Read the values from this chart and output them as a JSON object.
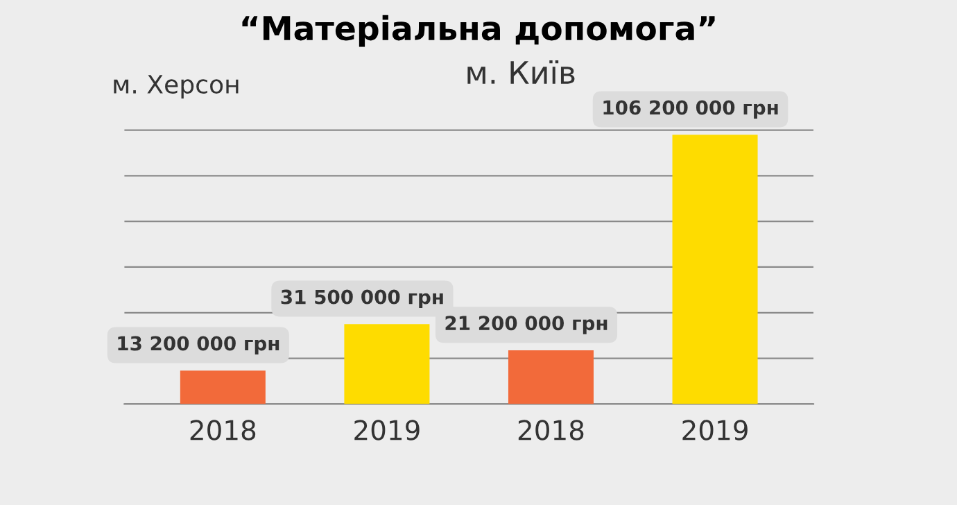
{
  "chart_data": {
    "type": "bar",
    "title": "“Матеріальна допомога”",
    "categories": [
      "2018",
      "2019",
      "2018",
      "2019"
    ],
    "values": [
      13200000,
      31500000,
      21200000,
      106200000
    ],
    "colors": [
      "#f26a3a",
      "#fedc00",
      "#f26a3a",
      "#fedc00"
    ],
    "value_labels": [
      "13 200 000 грн",
      "31 500 000 грн",
      "21 200 000 грн",
      "106 200 000 грн"
    ],
    "yticks": [
      {
        "value": 0,
        "label": null
      },
      {
        "value": 18000000,
        "label": null
      },
      {
        "value": 36000000,
        "label": null
      },
      {
        "value": 54000000,
        "label": null
      },
      {
        "value": 72000000,
        "label": null
      },
      {
        "value": 90000000,
        "label": null
      },
      {
        "value": 108000000,
        "label": null
      }
    ],
    "grid": "y",
    "annotations": [
      "м. Херсон",
      "м. Київ"
    ]
  }
}
